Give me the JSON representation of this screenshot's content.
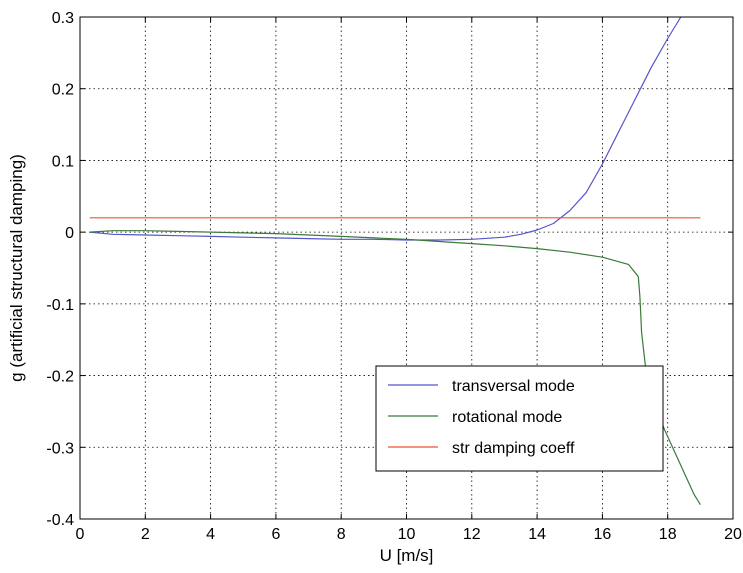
{
  "chart_data": {
    "type": "line",
    "title": "",
    "xlabel": "U [m/s]",
    "ylabel": "g (artificial structural damping)",
    "xlim": [
      0,
      20
    ],
    "ylim": [
      -0.4,
      0.3
    ],
    "xticks": [
      "0",
      "2",
      "4",
      "6",
      "8",
      "10",
      "12",
      "14",
      "16",
      "18",
      "20"
    ],
    "yticks": [
      "0.3",
      "0.2",
      "0.1",
      "0",
      "-0.1",
      "-0.2",
      "-0.3",
      "-0.4"
    ],
    "grid": true,
    "grid_style": "dotted",
    "legend_position": "lower-right",
    "series": [
      {
        "name": "transversal mode",
        "color": "#5555cc",
        "points": [
          [
            0.3,
            0
          ],
          [
            1,
            -0.003
          ],
          [
            2,
            -0.004
          ],
          [
            3,
            -0.005
          ],
          [
            4,
            -0.006
          ],
          [
            5,
            -0.007
          ],
          [
            6,
            -0.008
          ],
          [
            7,
            -0.009
          ],
          [
            8,
            -0.01
          ],
          [
            9,
            -0.01
          ],
          [
            10,
            -0.011
          ],
          [
            11,
            -0.011
          ],
          [
            12,
            -0.01
          ],
          [
            13,
            -0.007
          ],
          [
            13.5,
            -0.003
          ],
          [
            14,
            0.003
          ],
          [
            14.5,
            0.012
          ],
          [
            15,
            0.03
          ],
          [
            15.5,
            0.055
          ],
          [
            16,
            0.095
          ],
          [
            16.5,
            0.14
          ],
          [
            17,
            0.185
          ],
          [
            17.5,
            0.23
          ],
          [
            18,
            0.27
          ],
          [
            18.4,
            0.3
          ]
        ]
      },
      {
        "name": "rotational mode",
        "color": "#3a7a3a",
        "points": [
          [
            0.3,
            0
          ],
          [
            1,
            0.002
          ],
          [
            2,
            0.002
          ],
          [
            3,
            0.001
          ],
          [
            4,
            0
          ],
          [
            5,
            -0.001
          ],
          [
            6,
            -0.002
          ],
          [
            7,
            -0.004
          ],
          [
            8,
            -0.006
          ],
          [
            9,
            -0.008
          ],
          [
            10,
            -0.01
          ],
          [
            11,
            -0.013
          ],
          [
            12,
            -0.016
          ],
          [
            13,
            -0.019
          ],
          [
            14,
            -0.023
          ],
          [
            15,
            -0.028
          ],
          [
            16,
            -0.035
          ],
          [
            16.8,
            -0.045
          ],
          [
            17.1,
            -0.062
          ],
          [
            17.15,
            -0.09
          ],
          [
            17.2,
            -0.14
          ],
          [
            17.35,
            -0.2
          ],
          [
            17.6,
            -0.24
          ],
          [
            17.9,
            -0.275
          ],
          [
            18.2,
            -0.305
          ],
          [
            18.5,
            -0.335
          ],
          [
            18.8,
            -0.365
          ],
          [
            19,
            -0.38
          ]
        ]
      },
      {
        "name": "str damping coeff",
        "color": "#ee5533",
        "points": [
          [
            0.3,
            0.02
          ],
          [
            19,
            0.02
          ]
        ]
      }
    ]
  }
}
